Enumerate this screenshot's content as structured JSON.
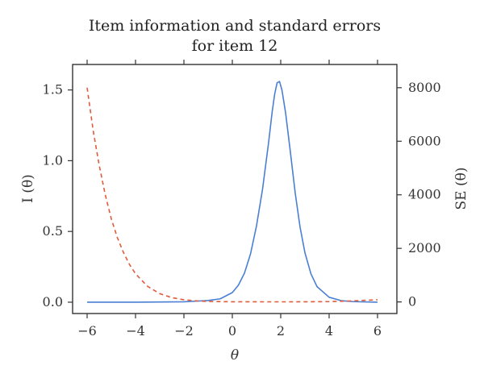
{
  "chart_data": {
    "type": "line",
    "title": [
      "Item information and standard errors",
      "for item 12"
    ],
    "xlabel": "θ",
    "ylabel_left": "I (θ)",
    "ylabel_right": "SE (θ)",
    "xlim": [
      -6.6,
      6.8
    ],
    "xticks": [
      -6,
      -4,
      -2,
      0,
      2,
      4,
      6
    ],
    "ylim_left": [
      -0.08,
      1.68
    ],
    "yticks_left": [
      0.0,
      0.5,
      1.0,
      1.5
    ],
    "ylim_right": [
      -433,
      8867
    ],
    "yticks_right": [
      0,
      2000,
      4000,
      6000,
      8000
    ],
    "grid": false,
    "series": [
      {
        "axis": "left",
        "style": "solid",
        "color": "#4a7fd4",
        "x": [
          -6,
          -4,
          -2,
          -1,
          -0.5,
          0,
          0.25,
          0.5,
          0.75,
          1.0,
          1.25,
          1.5,
          1.65,
          1.75,
          1.85,
          1.95,
          2.05,
          2.2,
          2.4,
          2.6,
          2.8,
          3.0,
          3.25,
          3.5,
          4.0,
          4.5,
          5.0,
          6.0
        ],
        "values": [
          0.0,
          0.0,
          0.003,
          0.012,
          0.024,
          0.068,
          0.12,
          0.205,
          0.34,
          0.54,
          0.8,
          1.13,
          1.35,
          1.47,
          1.55,
          1.56,
          1.5,
          1.34,
          1.06,
          0.77,
          0.53,
          0.35,
          0.2,
          0.11,
          0.035,
          0.011,
          0.004,
          0.0
        ]
      },
      {
        "axis": "right",
        "style": "dashed",
        "color": "#e05a3c",
        "x": [
          -6,
          -5.75,
          -5.5,
          -5.25,
          -5,
          -4.75,
          -4.5,
          -4.25,
          -4,
          -3.5,
          -3,
          -2.5,
          -2,
          -1.5,
          -1,
          0,
          1,
          2,
          3,
          4,
          5,
          6
        ],
        "values": [
          8000,
          6400,
          5100,
          4000,
          3100,
          2400,
          1850,
          1400,
          1050,
          580,
          310,
          160,
          80,
          40,
          18,
          6,
          4,
          3,
          5,
          12,
          40,
          80
        ]
      }
    ]
  }
}
